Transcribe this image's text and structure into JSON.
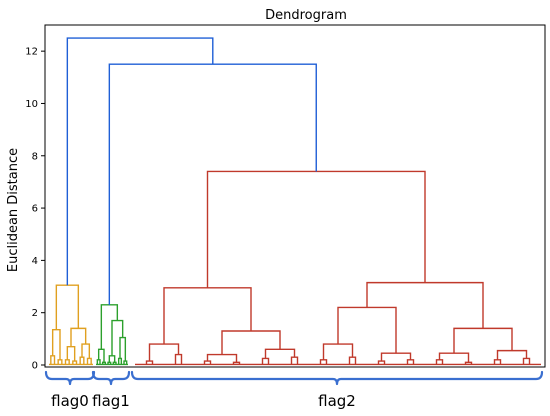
{
  "chart_data": {
    "type": "dendrogram",
    "title": "Dendrogram",
    "ylabel": "Euclidean Distance",
    "xlabel": "",
    "ylim": [
      0,
      13
    ],
    "yticks": [
      0,
      2,
      4,
      6,
      8,
      10,
      12
    ],
    "grid": false,
    "colors": {
      "flag0": "#e0a020",
      "flag1": "#2ca02c",
      "flag2": "#c0392b",
      "above_threshold": "#1f5fd6",
      "brace": "#3a6fd0"
    },
    "clusters": [
      {
        "name": "flag0",
        "color": "#e0a020",
        "height": 3.05,
        "children": [
          {
            "height": 1.35,
            "children": [
              {
                "height": 0.35
              },
              {
                "height": 0.2
              }
            ]
          },
          {
            "height": 1.4,
            "children": [
              {
                "height": 0.7,
                "children": [
                  {
                    "height": 0.2
                  },
                  {
                    "height": 0.15
                  }
                ]
              },
              {
                "height": 0.8,
                "children": [
                  {
                    "height": 0.3
                  },
                  {
                    "height": 0.25
                  }
                ]
              }
            ]
          }
        ]
      },
      {
        "name": "flag1",
        "color": "#2ca02c",
        "height": 2.3,
        "children": [
          {
            "height": 0.6,
            "children": [
              {
                "height": 0.2
              },
              {
                "height": 0.1
              }
            ]
          },
          {
            "height": 1.7,
            "children": [
              {
                "height": 0.35,
                "children": [
                  {
                    "height": 0.1
                  },
                  {
                    "height": 0.1
                  }
                ]
              },
              {
                "height": 1.05,
                "children": [
                  {
                    "height": 0.25
                  },
                  {
                    "height": 0.15
                  }
                ]
              }
            ]
          }
        ]
      },
      {
        "name": "flag2",
        "color": "#c0392b",
        "height": 7.4,
        "children": [
          {
            "height": 2.95,
            "children": [
              {
                "height": 0.8,
                "children": [
                  {
                    "height": 0.15
                  },
                  {
                    "height": 0.4
                  }
                ]
              },
              {
                "height": 1.3,
                "children": [
                  {
                    "height": 0.4,
                    "children": [
                      {
                        "height": 0.15
                      },
                      {
                        "height": 0.1
                      }
                    ]
                  },
                  {
                    "height": 0.6,
                    "children": [
                      {
                        "height": 0.25
                      },
                      {
                        "height": 0.3
                      }
                    ]
                  }
                ]
              }
            ]
          },
          {
            "height": 3.15,
            "children": [
              {
                "height": 2.2,
                "children": [
                  {
                    "height": 0.8,
                    "children": [
                      {
                        "height": 0.2
                      },
                      {
                        "height": 0.3
                      }
                    ]
                  },
                  {
                    "height": 0.45,
                    "children": [
                      {
                        "height": 0.15
                      },
                      {
                        "height": 0.2
                      }
                    ]
                  }
                ]
              },
              {
                "height": 1.4,
                "children": [
                  {
                    "height": 0.45,
                    "children": [
                      {
                        "height": 0.2
                      },
                      {
                        "height": 0.1
                      }
                    ]
                  },
                  {
                    "height": 0.55,
                    "children": [
                      {
                        "height": 0.2
                      },
                      {
                        "height": 0.25
                      }
                    ]
                  }
                ]
              }
            ]
          }
        ]
      }
    ],
    "merges_above_threshold": [
      {
        "height": 12.5,
        "left": "flag0",
        "right": "flag1+flag2"
      },
      {
        "height": 11.5,
        "left": "flag1",
        "right": "flag2"
      }
    ],
    "cluster_labels": [
      "flag0",
      "flag1",
      "flag2"
    ]
  }
}
